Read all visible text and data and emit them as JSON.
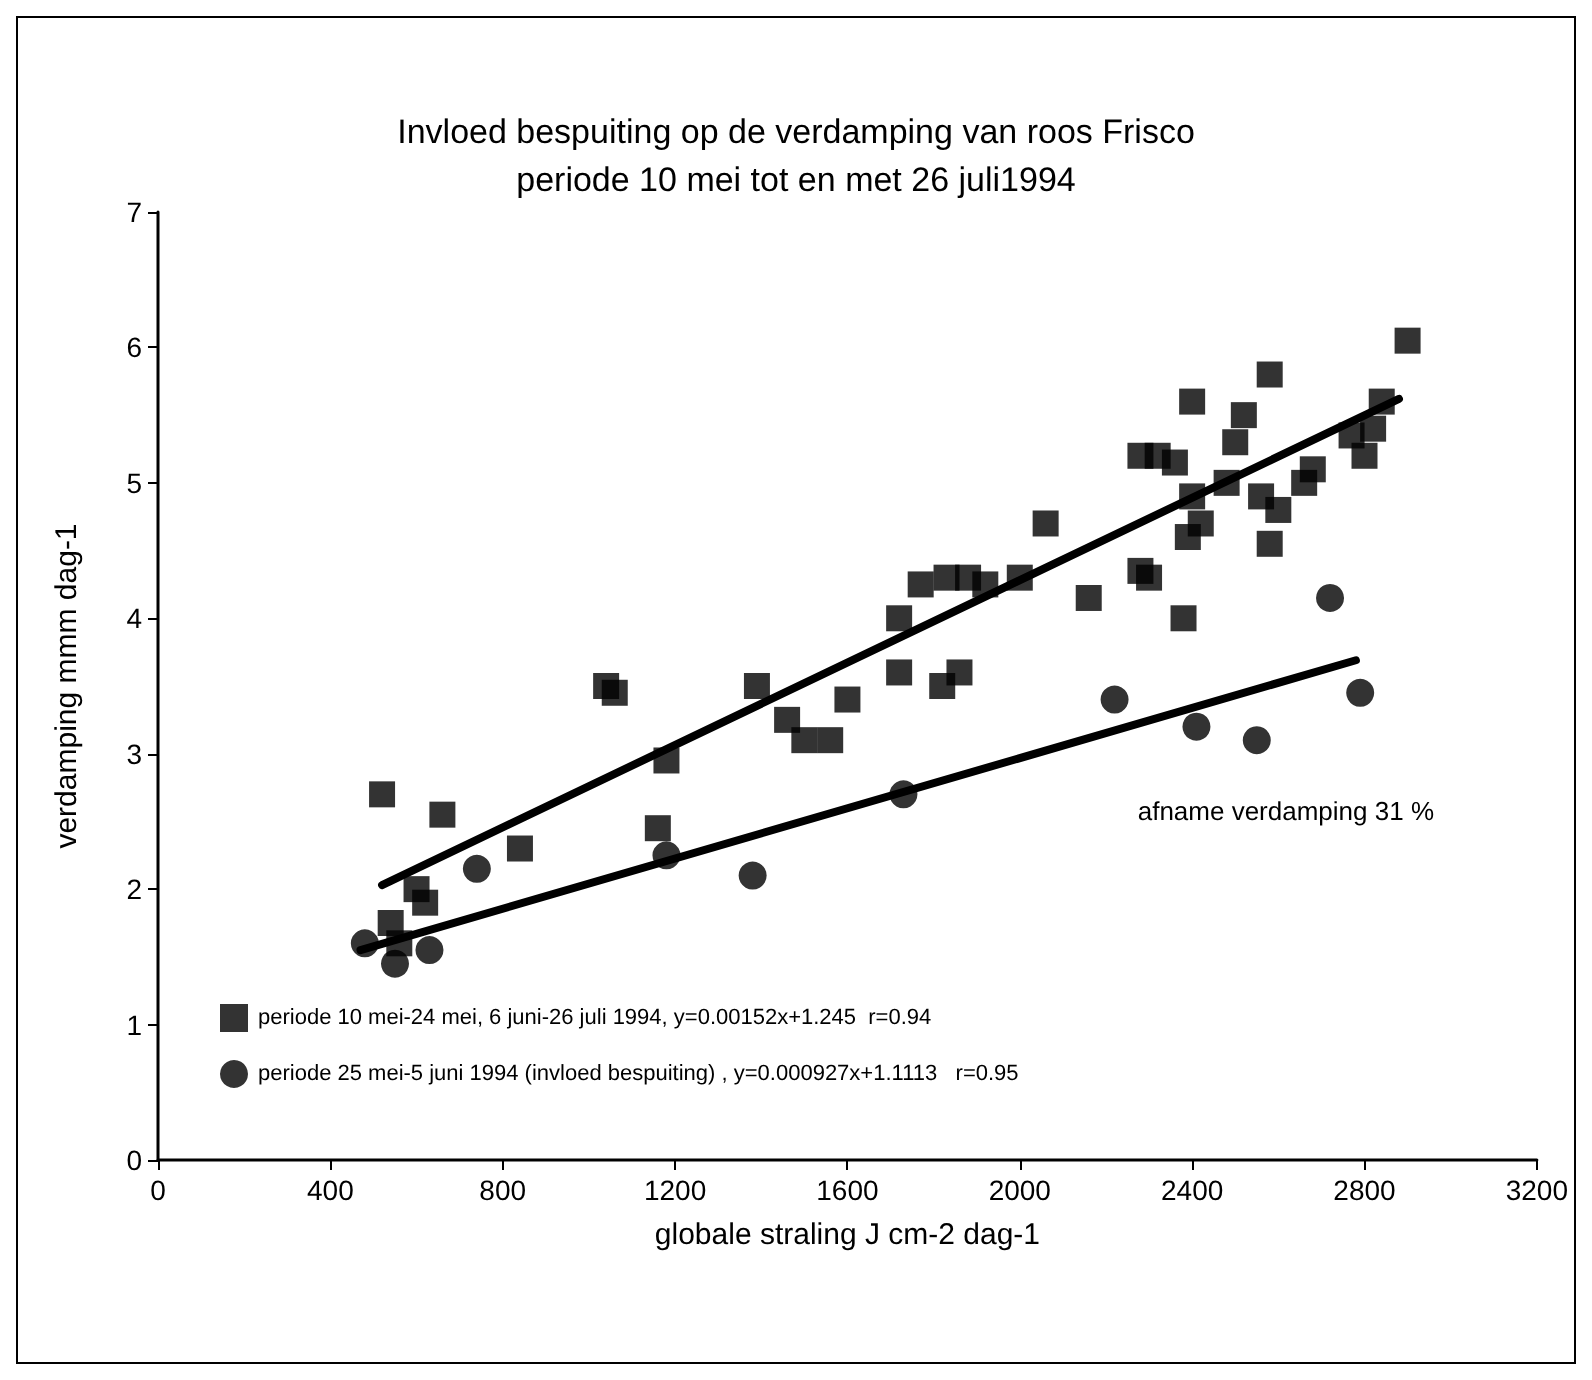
{
  "chart_data": {
    "type": "scatter",
    "title": "Invloed bespuiting op de verdamping van roos Frisco\nperiode 10 mei tot en met 26 juli1994",
    "xlabel": "globale straling J cm-2 dag-1",
    "ylabel": "verdamping mmm dag-1",
    "annotations": [
      "afname verdamping 31 %"
    ],
    "xlim": [
      0,
      3200
    ],
    "xticks": [
      0,
      400,
      800,
      1200,
      1600,
      2000,
      2400,
      2800,
      3200
    ],
    "ylim": [
      0,
      7
    ],
    "yticks": [
      0,
      1,
      2,
      3,
      4,
      5,
      6,
      7
    ],
    "grid": false,
    "legend": "bottom left",
    "series": [
      {
        "name": "periode 10 mei-24 mei, 6 juni-26 juli 1994, y=0.00152x+1.245  r=0.94",
        "color": "#000000",
        "marker": "square",
        "x": [
          520,
          540,
          560,
          600,
          620,
          660,
          840,
          1040,
          1060,
          1160,
          1180,
          1390,
          1460,
          1500,
          1560,
          1600,
          1720,
          1720,
          1770,
          1820,
          1830,
          1860,
          1880,
          1920,
          2000,
          2060,
          2160,
          2280,
          2280,
          2300,
          2320,
          2360,
          2380,
          2390,
          2400,
          2400,
          2420,
          2480,
          2500,
          2520,
          2560,
          2580,
          2580,
          2600,
          2660,
          2680,
          2770,
          2800,
          2820,
          2840,
          2900
        ],
        "values": [
          2.7,
          1.75,
          1.6,
          2.0,
          1.9,
          2.55,
          2.3,
          3.5,
          3.45,
          2.45,
          2.95,
          3.5,
          3.25,
          3.1,
          3.1,
          3.4,
          4.0,
          3.6,
          4.25,
          3.5,
          4.3,
          3.6,
          4.3,
          4.25,
          4.3,
          4.7,
          4.15,
          5.2,
          4.35,
          4.3,
          5.2,
          5.15,
          4.0,
          4.6,
          5.6,
          4.9,
          4.7,
          5.0,
          5.3,
          5.5,
          4.9,
          5.8,
          4.55,
          4.8,
          5.0,
          5.1,
          5.35,
          5.2,
          5.4,
          5.6,
          6.05
        ]
      },
      {
        "name": "periode 25 mei-5 juni 1994 (invloed bespuiting) , y=0.000927x+1.1113   r=0.95",
        "color": "#000000",
        "marker": "circle",
        "x": [
          480,
          550,
          630,
          740,
          1180,
          1380,
          1730,
          2220,
          2410,
          2550,
          2720,
          2790
        ],
        "values": [
          1.6,
          1.45,
          1.55,
          2.15,
          2.25,
          2.1,
          2.7,
          3.4,
          3.2,
          3.1,
          4.15,
          3.45
        ]
      },
      {
        "type": "line",
        "color": "#000000",
        "marker": "none",
        "x": [
          520,
          2880
        ],
        "values": [
          2.03,
          5.62
        ]
      },
      {
        "type": "line",
        "color": "#000000",
        "marker": "none",
        "x": [
          470,
          2780
        ],
        "values": [
          1.55,
          3.69
        ]
      }
    ]
  }
}
